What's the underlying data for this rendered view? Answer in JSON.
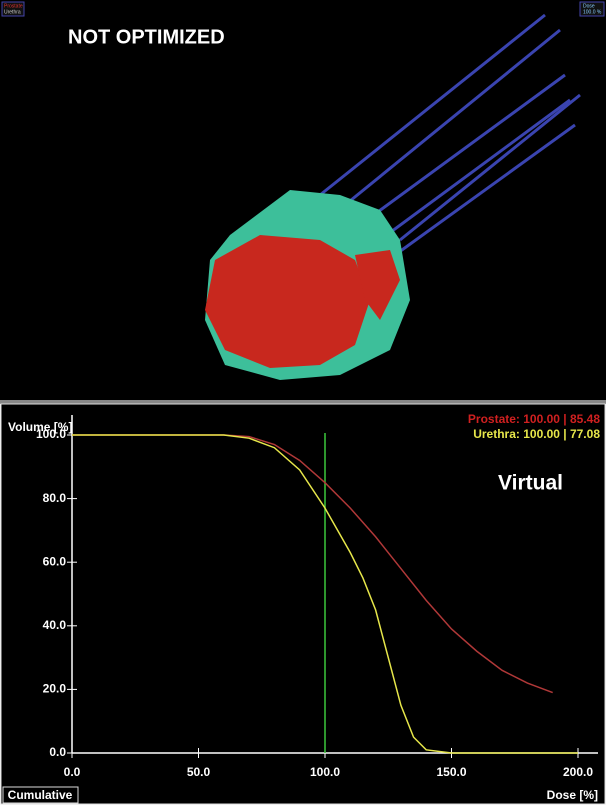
{
  "header": {
    "title": "NOT OPTIMIZED",
    "structures": [
      "Prostate",
      "Urethra"
    ],
    "dose_box": [
      "Dose",
      "100.0 %"
    ]
  },
  "chart_data": {
    "type": "line",
    "subtitle": "Virtual",
    "xlabel": "Dose [%]",
    "ylabel": "Volume [%]",
    "mode_button": "Cumulative",
    "legend_texts": [
      "Prostate: 100.00 | 85.48",
      "Urethra: 100.00 | 77.08"
    ],
    "xlim": [
      0,
      200
    ],
    "ylim": [
      0,
      100
    ],
    "xticks": [
      {
        "value": 0,
        "label": "0.0"
      },
      {
        "value": 50,
        "label": "50.0"
      },
      {
        "value": 100,
        "label": "100.0"
      },
      {
        "value": 150,
        "label": "150.0"
      },
      {
        "value": 200,
        "label": "200.0"
      }
    ],
    "yticks": [
      {
        "value": 0,
        "label": "0.0"
      },
      {
        "value": 20,
        "label": "20.0"
      },
      {
        "value": 40,
        "label": "40.0"
      },
      {
        "value": 60,
        "label": "60.0"
      },
      {
        "value": 80,
        "label": "80.0"
      },
      {
        "value": 100,
        "label": "100.0"
      }
    ],
    "marker_x": 100,
    "marker_color": "#3cc83c",
    "series": [
      {
        "name": "Prostate",
        "color": "#b03838",
        "x": [
          0,
          60,
          70,
          80,
          90,
          100,
          110,
          120,
          130,
          140,
          150,
          160,
          170,
          180,
          190
        ],
        "values": [
          100,
          100,
          99.5,
          97,
          92,
          85,
          77,
          68,
          58,
          48,
          39,
          32,
          26,
          22,
          19
        ]
      },
      {
        "name": "Urethra",
        "color": "#e6e64a",
        "x": [
          0,
          60,
          70,
          80,
          90,
          100,
          110,
          115,
          120,
          125,
          130,
          135,
          140,
          150,
          160,
          200
        ],
        "values": [
          100,
          100,
          99,
          96,
          89,
          77,
          63,
          55,
          45,
          30,
          15,
          5,
          1,
          0,
          0,
          0
        ]
      }
    ]
  }
}
